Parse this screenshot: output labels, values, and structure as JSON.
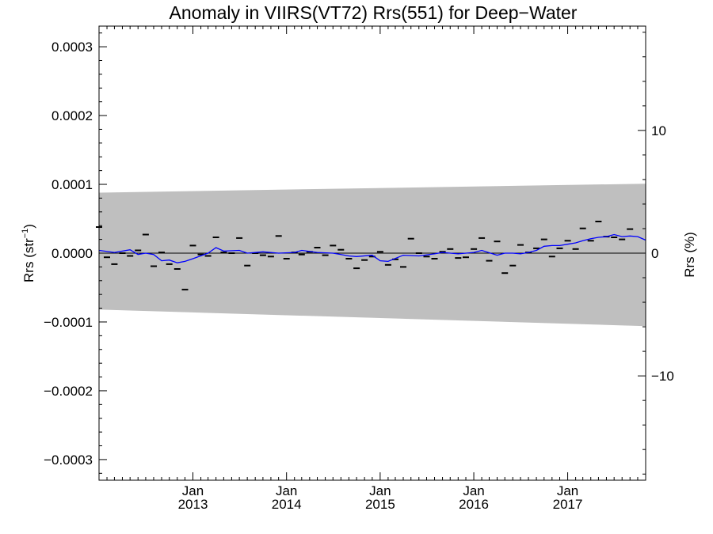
{
  "chart_data": {
    "type": "scatter",
    "title": "Anomaly in VIIRS(VT72) Rrs(551) for Deep−Water",
    "ylabel_left": {
      "base": "Rrs (str",
      "sup": "−1",
      "close": ")"
    },
    "ylabel_right": "Rrs (%)",
    "xlim": [
      "2012-01-01",
      "2017-11-01"
    ],
    "ylim_left": [
      -0.00033,
      0.00033
    ],
    "ylim_right": [
      -18.5,
      18.5
    ],
    "left_ticks": [
      {
        "value": 0.0003,
        "label": "0.0003"
      },
      {
        "value": 0.0002,
        "label": "0.0002"
      },
      {
        "value": 0.0001,
        "label": "0.0001"
      },
      {
        "value": 0.0,
        "label": "0.0000"
      },
      {
        "value": -0.0001,
        "label": "−0.0001"
      },
      {
        "value": -0.0002,
        "label": "−0.0002"
      },
      {
        "value": -0.0003,
        "label": "−0.0003"
      }
    ],
    "right_ticks": [
      {
        "value": 10,
        "label": "10"
      },
      {
        "value": 0,
        "label": "0"
      },
      {
        "value": -10,
        "label": "−10"
      }
    ],
    "x_ticks": [
      {
        "date": "2013-01-01",
        "month": "Jan",
        "year": "2013"
      },
      {
        "date": "2014-01-01",
        "month": "Jan",
        "year": "2014"
      },
      {
        "date": "2015-01-01",
        "month": "Jan",
        "year": "2015"
      },
      {
        "date": "2016-01-01",
        "month": "Jan",
        "year": "2016"
      },
      {
        "date": "2017-01-01",
        "month": "Jan",
        "year": "2017"
      }
    ],
    "band": {
      "start": [
        "2012-01-01",
        8.8e-05,
        -8.2e-05
      ],
      "end": [
        "2017-11-01",
        0.000101,
        -0.000106
      ]
    },
    "zero_line": 0.0,
    "points": [
      [
        "2012-01-01",
        3.8e-05
      ],
      [
        "2012-02-01",
        -6e-06
      ],
      [
        "2012-03-01",
        -1.6e-05
      ],
      [
        "2012-04-01",
        0.0
      ],
      [
        "2012-05-01",
        -4e-06
      ],
      [
        "2012-06-01",
        4e-06
      ],
      [
        "2012-07-01",
        2.7e-05
      ],
      [
        "2012-08-01",
        -1.9e-05
      ],
      [
        "2012-09-01",
        1e-06
      ],
      [
        "2012-10-01",
        -1.6e-05
      ],
      [
        "2012-11-01",
        -2.3e-05
      ],
      [
        "2012-12-01",
        -5.3e-05
      ],
      [
        "2013-01-01",
        1.1e-05
      ],
      [
        "2013-02-01",
        -2e-06
      ],
      [
        "2013-03-01",
        -4e-06
      ],
      [
        "2013-04-01",
        2.3e-05
      ],
      [
        "2013-05-01",
        1e-06
      ],
      [
        "2013-06-01",
        0.0
      ],
      [
        "2013-07-01",
        2.2e-05
      ],
      [
        "2013-08-01",
        -1.8e-05
      ],
      [
        "2013-09-01",
        0.0
      ],
      [
        "2013-10-01",
        -3e-06
      ],
      [
        "2013-11-01",
        -5e-06
      ],
      [
        "2013-12-01",
        2.5e-05
      ],
      [
        "2014-01-01",
        -8e-06
      ],
      [
        "2014-02-01",
        1e-06
      ],
      [
        "2014-03-01",
        -2e-06
      ],
      [
        "2014-04-01",
        2e-06
      ],
      [
        "2014-05-01",
        8e-06
      ],
      [
        "2014-06-01",
        -3e-06
      ],
      [
        "2014-07-01",
        1.1e-05
      ],
      [
        "2014-08-01",
        5e-06
      ],
      [
        "2014-09-01",
        -8e-06
      ],
      [
        "2014-10-01",
        -2.2e-05
      ],
      [
        "2014-11-01",
        -1e-05
      ],
      [
        "2014-12-01",
        -5e-06
      ],
      [
        "2015-01-01",
        2e-06
      ],
      [
        "2015-02-01",
        -1.7e-05
      ],
      [
        "2015-03-01",
        -9e-06
      ],
      [
        "2015-04-01",
        -2e-05
      ],
      [
        "2015-05-01",
        2.1e-05
      ],
      [
        "2015-06-01",
        0.0
      ],
      [
        "2015-07-01",
        -5e-06
      ],
      [
        "2015-08-01",
        -8e-06
      ],
      [
        "2015-09-01",
        2e-06
      ],
      [
        "2015-10-01",
        6e-06
      ],
      [
        "2015-11-01",
        -7e-06
      ],
      [
        "2015-12-01",
        -6e-06
      ],
      [
        "2016-01-01",
        6e-06
      ],
      [
        "2016-02-01",
        2.2e-05
      ],
      [
        "2016-03-01",
        -1.1e-05
      ],
      [
        "2016-04-01",
        1.7e-05
      ],
      [
        "2016-05-01",
        -2.9e-05
      ],
      [
        "2016-06-01",
        -1.8e-05
      ],
      [
        "2016-07-01",
        1.2e-05
      ],
      [
        "2016-08-01",
        1e-06
      ],
      [
        "2016-09-01",
        7e-06
      ],
      [
        "2016-10-01",
        2e-05
      ],
      [
        "2016-11-01",
        -5e-06
      ],
      [
        "2016-12-01",
        7e-06
      ],
      [
        "2017-01-01",
        1.8e-05
      ],
      [
        "2017-02-01",
        6e-06
      ],
      [
        "2017-03-01",
        3.6e-05
      ],
      [
        "2017-04-01",
        1.8e-05
      ],
      [
        "2017-05-01",
        4.6e-05
      ],
      [
        "2017-06-01",
        2.4e-05
      ],
      [
        "2017-07-01",
        2.3e-05
      ],
      [
        "2017-08-01",
        2e-05
      ],
      [
        "2017-09-01",
        3.5e-05
      ]
    ],
    "smoothed": [
      [
        "2012-01-01",
        4e-06
      ],
      [
        "2012-03-01",
        1e-06
      ],
      [
        "2012-05-01",
        5e-06
      ],
      [
        "2012-06-01",
        -2e-06
      ],
      [
        "2012-07-01",
        0.0
      ],
      [
        "2012-08-01",
        -2e-06
      ],
      [
        "2012-09-01",
        -1.1e-05
      ],
      [
        "2012-10-01",
        -1e-05
      ],
      [
        "2012-11-01",
        -1.4e-05
      ],
      [
        "2012-12-01",
        -1.2e-05
      ],
      [
        "2013-01-01",
        -8e-06
      ],
      [
        "2013-03-01",
        0.0
      ],
      [
        "2013-04-01",
        8e-06
      ],
      [
        "2013-05-01",
        3e-06
      ],
      [
        "2013-07-01",
        4e-06
      ],
      [
        "2013-08-01",
        0.0
      ],
      [
        "2013-10-01",
        2e-06
      ],
      [
        "2013-12-01",
        0.0
      ],
      [
        "2014-02-01",
        1e-06
      ],
      [
        "2014-03-01",
        4e-06
      ],
      [
        "2014-05-01",
        1e-06
      ],
      [
        "2014-07-01",
        0.0
      ],
      [
        "2014-09-01",
        -4e-06
      ],
      [
        "2014-10-01",
        -5e-06
      ],
      [
        "2014-12-01",
        -3e-06
      ],
      [
        "2015-01-01",
        -1.1e-05
      ],
      [
        "2015-02-01",
        -1.2e-05
      ],
      [
        "2015-04-01",
        -3e-06
      ],
      [
        "2015-06-01",
        -4e-06
      ],
      [
        "2015-08-01",
        -1e-06
      ],
      [
        "2015-09-01",
        1e-06
      ],
      [
        "2015-11-01",
        -1e-06
      ],
      [
        "2016-01-01",
        1e-06
      ],
      [
        "2016-02-01",
        4e-06
      ],
      [
        "2016-04-01",
        -3e-06
      ],
      [
        "2016-05-01",
        0.0
      ],
      [
        "2016-06-01",
        0.0
      ],
      [
        "2016-07-01",
        -1e-06
      ],
      [
        "2016-08-01",
        1e-06
      ],
      [
        "2016-09-01",
        4e-06
      ],
      [
        "2016-10-01",
        1e-05
      ],
      [
        "2016-11-01",
        1.1e-05
      ],
      [
        "2016-12-01",
        1.1e-05
      ],
      [
        "2017-01-01",
        1.3e-05
      ],
      [
        "2017-02-01",
        1.5e-05
      ],
      [
        "2017-03-01",
        1.8e-05
      ],
      [
        "2017-04-01",
        2.1e-05
      ],
      [
        "2017-05-01",
        2.3e-05
      ],
      [
        "2017-06-01",
        2.4e-05
      ],
      [
        "2017-07-01",
        2.7e-05
      ],
      [
        "2017-08-01",
        2.4e-05
      ],
      [
        "2017-09-01",
        2.5e-05
      ],
      [
        "2017-10-01",
        2.4e-05
      ],
      [
        "2017-11-01",
        1.9e-05
      ]
    ],
    "grid": false,
    "colors": {
      "band": "#bfbfbf",
      "smoothed_line": "#0000ff",
      "points": "#000000",
      "zero_line": "#000000",
      "axes": "#000000",
      "background": "#ffffff"
    }
  }
}
